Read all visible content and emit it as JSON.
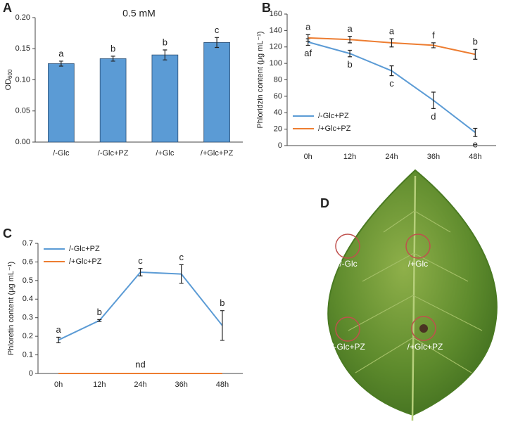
{
  "chart_data": [
    {
      "type": "bar",
      "panel_label": "A",
      "title": "0.5 mM",
      "ylabel": "OD",
      "ylabel_sub": "600",
      "categories": [
        "/-Glc",
        "/-Glc+PZ",
        "/+Glc",
        "/+Glc+PZ"
      ],
      "values": [
        0.126,
        0.134,
        0.14,
        0.16
      ],
      "errors": [
        0.004,
        0.004,
        0.008,
        0.008
      ],
      "letters": [
        "a",
        "b",
        "b",
        "c"
      ],
      "color": "#5b9bd5",
      "ylim": [
        0,
        0.2
      ],
      "yticks": [
        {
          "value": 0,
          "label": "0.00"
        },
        {
          "value": 0.05,
          "label": "0.05"
        },
        {
          "value": 0.1,
          "label": "0.10"
        },
        {
          "value": 0.15,
          "label": "0.15"
        },
        {
          "value": 0.2,
          "label": "0.20"
        }
      ]
    },
    {
      "type": "line",
      "panel_label": "B",
      "ylabel": "Phloridzin content  (μg mL⁻¹)",
      "categories": [
        "0h",
        "12h",
        "24h",
        "36h",
        "48h"
      ],
      "series": [
        {
          "name": "/-Glc+PZ",
          "color": "#5b9bd5",
          "values": [
            126,
            112,
            91,
            55,
            16
          ],
          "errors": [
            4,
            4,
            6,
            10,
            5
          ],
          "letters": [
            "af",
            "b",
            "c",
            "d",
            "e"
          ]
        },
        {
          "name": "/+Glc+PZ",
          "color": "#ed7d31",
          "values": [
            131,
            129,
            125,
            122,
            111
          ],
          "errors": [
            4,
            4,
            5,
            3,
            6
          ],
          "letters": [
            "a",
            "a",
            "a",
            "f",
            "b"
          ]
        }
      ],
      "ylim": [
        0,
        160
      ],
      "yticks": [
        0,
        20,
        40,
        60,
        80,
        100,
        120,
        140,
        160
      ],
      "legend": "lower left"
    },
    {
      "type": "line",
      "panel_label": "C",
      "ylabel": "Phloretin content  (μg mL⁻¹)",
      "categories": [
        "0h",
        "12h",
        "24h",
        "36h",
        "48h"
      ],
      "series": [
        {
          "name": "/-Glc+PZ",
          "color": "#5b9bd5",
          "values": [
            0.18,
            0.285,
            0.545,
            0.535,
            0.258
          ],
          "errors": [
            0.015,
            0.005,
            0.02,
            0.05,
            0.08
          ],
          "letters": [
            "a",
            "b",
            "c",
            "c",
            "b"
          ]
        },
        {
          "name": "/+Glc+PZ",
          "color": "#ed7d31",
          "values": [
            0,
            0,
            0,
            0,
            0
          ]
        }
      ],
      "annotation": "nd",
      "ylim": [
        0,
        0.7
      ],
      "yticks": [
        0,
        0.1,
        0.2,
        0.3,
        0.4,
        0.5,
        0.6,
        0.7
      ],
      "legend": "upper left"
    }
  ],
  "photo": {
    "panel_label": "D",
    "labels": [
      "/-Glc",
      "/+Glc",
      "/-Glc+PZ",
      "/+Glc+PZ"
    ]
  }
}
